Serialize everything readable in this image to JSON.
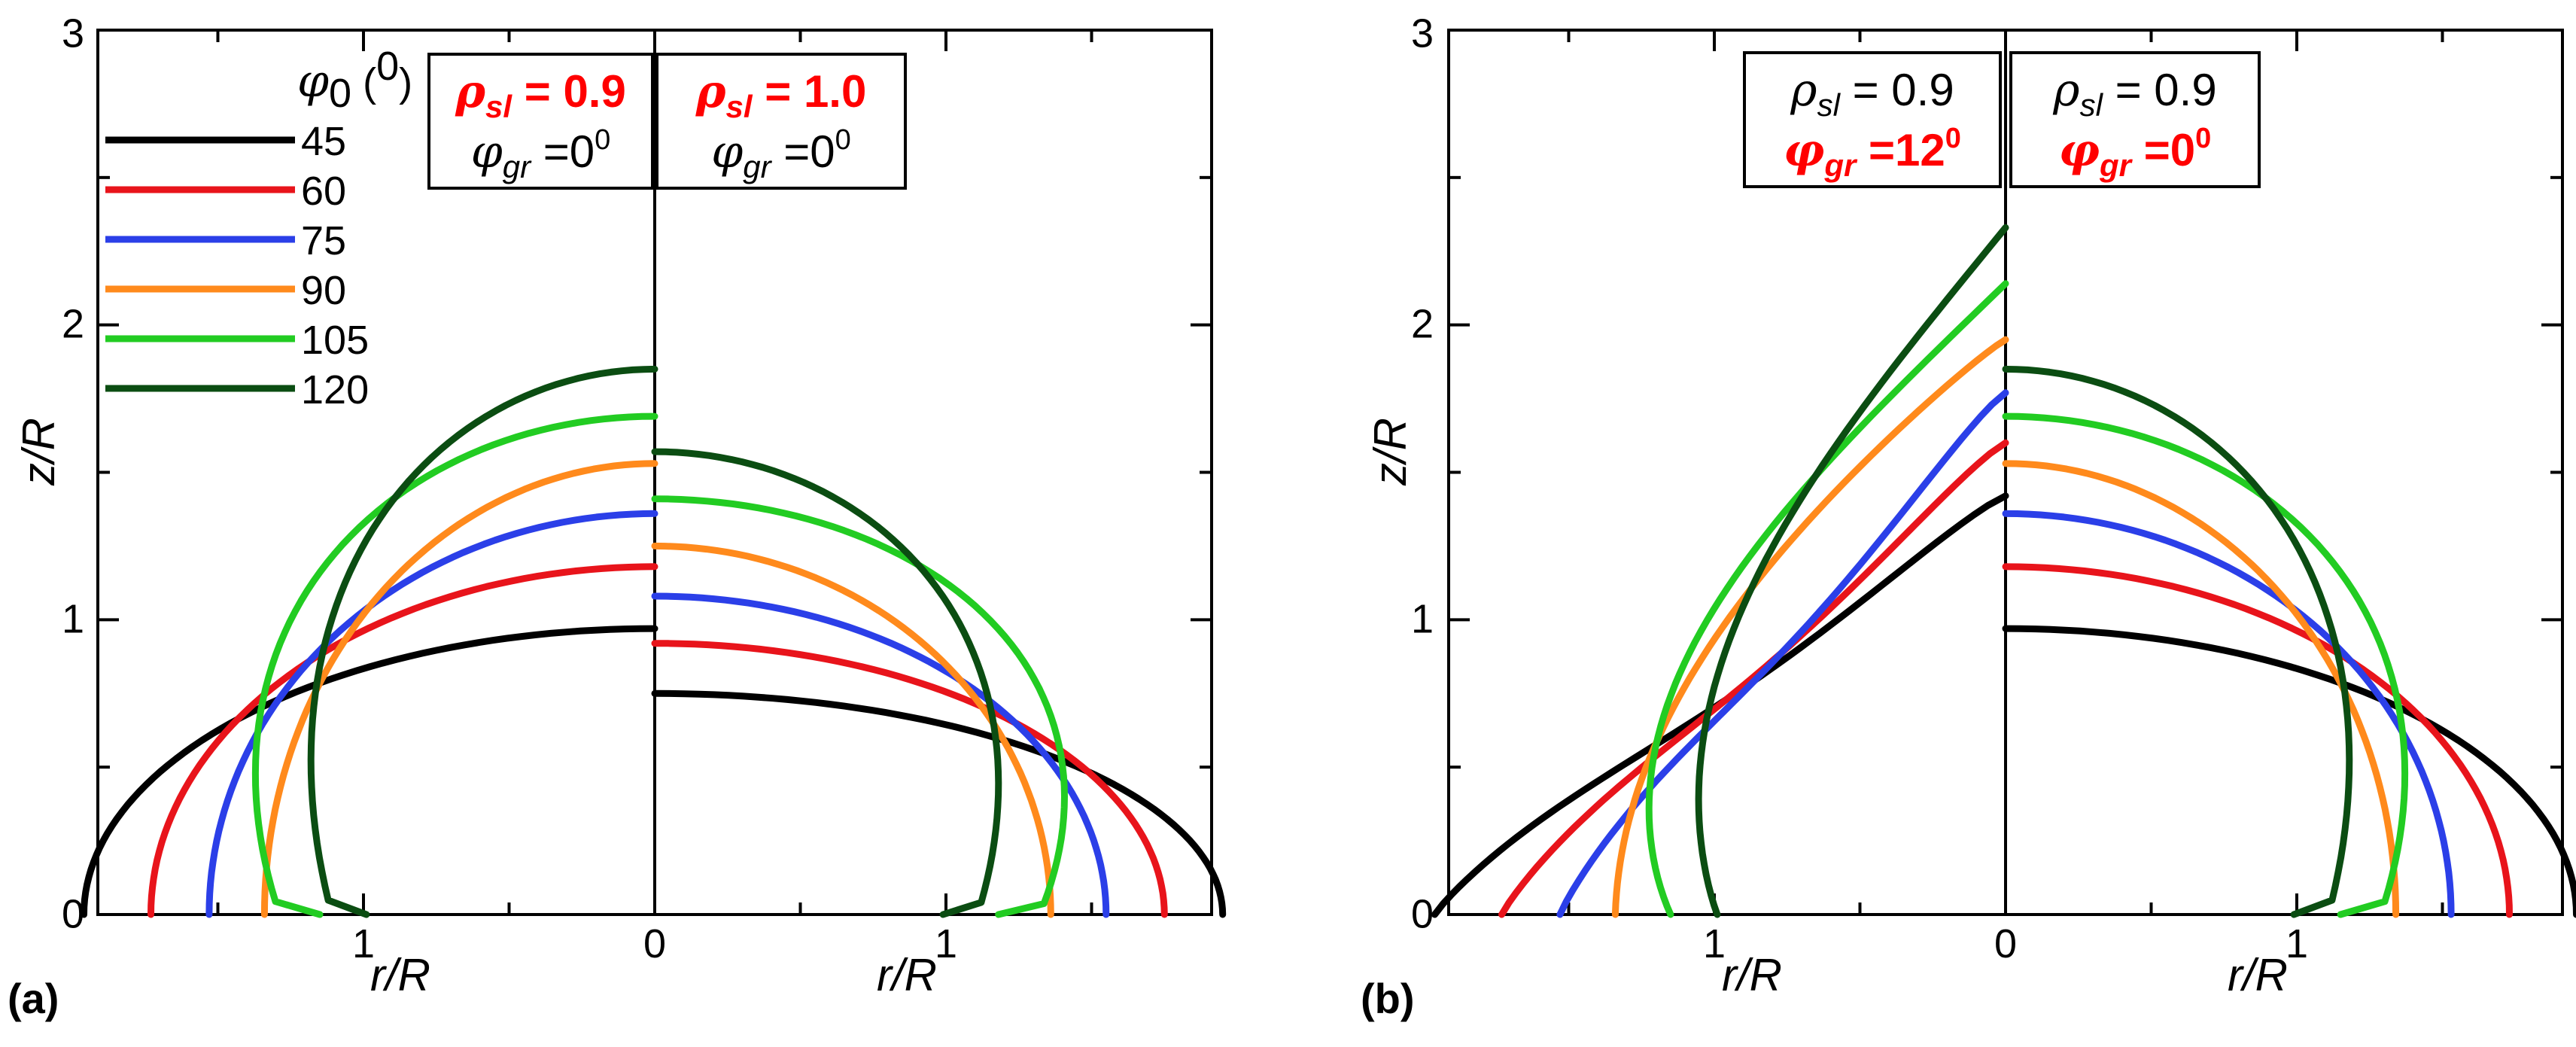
{
  "chart_data": [
    {
      "panel": "(a)",
      "type": "line",
      "xlabel_left": "r/R",
      "xlabel_right": "r/R",
      "ylabel": "z/R",
      "yticks": [
        "0",
        "1",
        "2",
        "3"
      ],
      "xticks_left": [
        "1"
      ],
      "xticks_center": [
        "0"
      ],
      "xticks_right": [
        "1"
      ],
      "ylim": [
        0,
        3
      ],
      "legend": {
        "title_symbol": "φ",
        "title_sub": "0",
        "title_unit": " (",
        "title_unit_sup": "0",
        "title_unit_close": ")",
        "entries": [
          "45",
          "60",
          "75",
          "90",
          "105",
          "120"
        ]
      },
      "annotations": [
        {
          "line1_sym": "ρ",
          "line1_sub": "sl",
          "line1_val": " = 0.9",
          "line2_sym": "φ",
          "line2_sub": "gr",
          "line2_val": " =0",
          "line2_sup": "0",
          "line1_color": "#ff0000",
          "line2_color": "#000000",
          "line1_bold": true,
          "line2_bold": false
        },
        {
          "line1_sym": "ρ",
          "line1_sub": "sl",
          "line1_val": " = 1.0",
          "line2_sym": "φ",
          "line2_sub": "gr",
          "line2_val": " =0",
          "line2_sup": "0",
          "line1_color": "#ff0000",
          "line2_color": "#000000",
          "line1_bold": true,
          "line2_bold": false
        }
      ],
      "series_left": [
        {
          "name": "45",
          "apex": 0.97,
          "base": 1.96,
          "kind": "low"
        },
        {
          "name": "60",
          "apex": 1.18,
          "base": 1.73,
          "kind": "low"
        },
        {
          "name": "75",
          "apex": 1.36,
          "base": 1.53,
          "kind": "low"
        },
        {
          "name": "90",
          "apex": 1.53,
          "base": 1.34,
          "kind": "mid"
        },
        {
          "name": "105",
          "apex": 1.69,
          "base": 1.15,
          "kind": "high"
        },
        {
          "name": "120",
          "apex": 1.85,
          "base": 0.99,
          "kind": "high"
        }
      ],
      "series_right": [
        {
          "name": "45",
          "apex": 0.75,
          "base": 1.95,
          "kind": "low"
        },
        {
          "name": "60",
          "apex": 0.92,
          "base": 1.75,
          "kind": "low"
        },
        {
          "name": "75",
          "apex": 1.08,
          "base": 1.55,
          "kind": "low"
        },
        {
          "name": "90",
          "apex": 1.25,
          "base": 1.36,
          "kind": "mid"
        },
        {
          "name": "105",
          "apex": 1.41,
          "base": 1.18,
          "kind": "high"
        },
        {
          "name": "120",
          "apex": 1.57,
          "base": 0.99,
          "kind": "high"
        }
      ]
    },
    {
      "panel": "(b)",
      "type": "line",
      "xlabel_left": "r/R",
      "xlabel_right": "r/R",
      "ylabel": "z/R",
      "yticks": [
        "0",
        "1",
        "2",
        "3"
      ],
      "xticks_left": [
        "1"
      ],
      "xticks_center": [
        "0"
      ],
      "xticks_right": [
        "1"
      ],
      "ylim": [
        0,
        3
      ],
      "annotations": [
        {
          "line1_sym": "ρ",
          "line1_sub": "sl",
          "line1_val": " = 0.9",
          "line2_sym": "φ",
          "line2_sub": "gr",
          "line2_val": " =12",
          "line2_sup": "0",
          "line1_color": "#000000",
          "line2_color": "#ff0000",
          "line1_bold": false,
          "line2_bold": true
        },
        {
          "line1_sym": "ρ",
          "line1_sub": "sl",
          "line1_val": " = 0.9",
          "line2_sym": "φ",
          "line2_sub": "gr",
          "line2_val": " =0",
          "line2_sup": "0",
          "line1_color": "#000000",
          "line2_color": "#ff0000",
          "line1_bold": false,
          "line2_bold": true
        }
      ],
      "series_left": [
        {
          "name": "45",
          "apex": 1.42,
          "base": 1.96,
          "kind": "tilt-low"
        },
        {
          "name": "60",
          "apex": 1.6,
          "base": 1.73,
          "kind": "tilt-low"
        },
        {
          "name": "75",
          "apex": 1.77,
          "base": 1.53,
          "kind": "tilt-low"
        },
        {
          "name": "90",
          "apex": 1.95,
          "base": 1.34,
          "kind": "tilt-mid"
        },
        {
          "name": "105",
          "apex": 2.14,
          "base": 1.15,
          "kind": "tilt-high"
        },
        {
          "name": "120",
          "apex": 2.33,
          "base": 0.99,
          "kind": "tilt-high"
        }
      ],
      "series_right": [
        {
          "name": "45",
          "apex": 0.97,
          "base": 1.96,
          "kind": "low"
        },
        {
          "name": "60",
          "apex": 1.18,
          "base": 1.73,
          "kind": "low"
        },
        {
          "name": "75",
          "apex": 1.36,
          "base": 1.53,
          "kind": "low"
        },
        {
          "name": "90",
          "apex": 1.53,
          "base": 1.34,
          "kind": "mid"
        },
        {
          "name": "105",
          "apex": 1.69,
          "base": 1.15,
          "kind": "high"
        },
        {
          "name": "120",
          "apex": 1.85,
          "base": 0.99,
          "kind": "high"
        }
      ]
    }
  ],
  "series_colors": {
    "45": "#000000",
    "60": "#e8141b",
    "75": "#2b3fe8",
    "90": "#ff8a1c",
    "105": "#22cc22",
    "120": "#0b4d12"
  }
}
